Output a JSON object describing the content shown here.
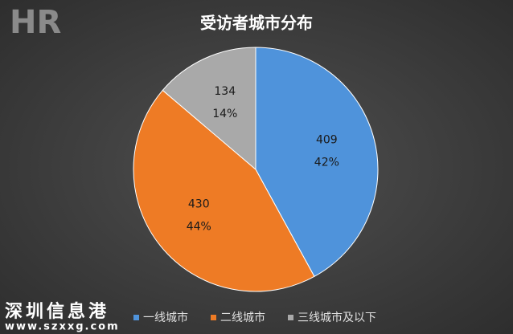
{
  "chart_data": {
    "type": "pie",
    "title": "受访者城市分布",
    "categories": [
      "一线城市",
      "二线城市",
      "三线城市及以下"
    ],
    "values": [
      409,
      430,
      134
    ],
    "percent_labels": [
      "42%",
      "44%",
      "14%"
    ],
    "colors": [
      "#4f93db",
      "#ee7b25",
      "#a9a9a9"
    ],
    "legend": "bottom"
  },
  "watermark": {
    "logo": "HR",
    "name": "深圳信息港",
    "url": "www.szxxg.com"
  }
}
